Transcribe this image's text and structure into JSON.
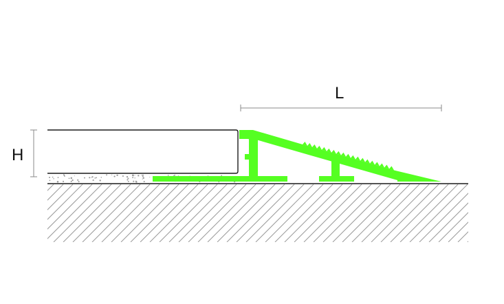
{
  "dimensions": {
    "height_label": "H",
    "length_label": "L"
  },
  "colors": {
    "profile": "#55ff22",
    "outline": "#1a1a1a",
    "dimension_line": "#8a8a8a",
    "hatch": "#9a9a9a",
    "speckle": "#9a9a9a"
  }
}
